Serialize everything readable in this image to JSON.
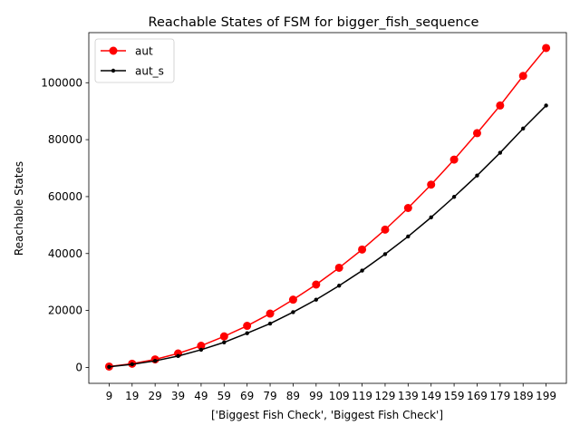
{
  "chart_data": {
    "type": "line",
    "title": "Reachable States of FSM for bigger_fish_sequence",
    "xlabel": "['Biggest Fish Check', 'Biggest Fish Check']",
    "ylabel": "Reachable States",
    "categories": [
      "9",
      "19",
      "29",
      "39",
      "49",
      "59",
      "69",
      "79",
      "89",
      "99",
      "109",
      "119",
      "129",
      "139",
      "149",
      "159",
      "169",
      "179",
      "189",
      "199"
    ],
    "yticks": [
      "0",
      "20000",
      "40000",
      "60000",
      "80000",
      "100000"
    ],
    "ytick_values": [
      0,
      20000,
      40000,
      60000,
      80000,
      100000
    ],
    "ylim": [
      -5600,
      117600
    ],
    "grid": false,
    "legend_position": "top-left",
    "series": [
      {
        "name": "aut",
        "color": "#ff0000",
        "marker": "large-dot",
        "values": [
          300,
          1300,
          2800,
          4900,
          7600,
          10900,
          14600,
          18900,
          23800,
          29100,
          35000,
          41400,
          48400,
          56000,
          64200,
          73000,
          82300,
          92000,
          102400,
          112200
        ]
      },
      {
        "name": "aut_s",
        "color": "#000000",
        "marker": "small-dot",
        "values": [
          200,
          1100,
          2300,
          4000,
          6200,
          8800,
          12000,
          15400,
          19400,
          23800,
          28700,
          34000,
          39800,
          46000,
          52700,
          59900,
          67400,
          75400,
          83900,
          92000
        ]
      }
    ]
  }
}
